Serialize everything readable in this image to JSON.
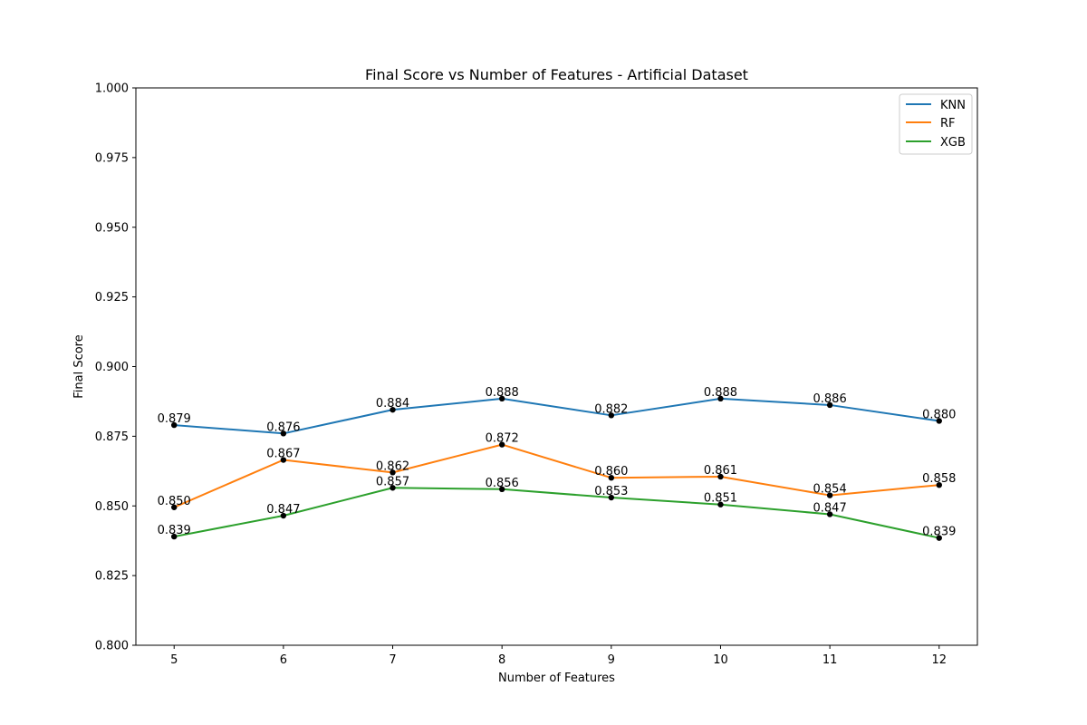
{
  "chart_data": {
    "type": "line",
    "title": "Final Score vs Number of Features - Artificial Dataset",
    "xlabel": "Number of Features",
    "ylabel": "Final Score",
    "x": [
      5,
      6,
      7,
      8,
      9,
      10,
      11,
      12
    ],
    "xlim": [
      4.65,
      12.35
    ],
    "ylim": [
      0.8,
      1.0
    ],
    "yticks": [
      "0.800",
      "0.825",
      "0.850",
      "0.875",
      "0.900",
      "0.925",
      "0.950",
      "0.975",
      "1.000"
    ],
    "xticks": [
      "5",
      "6",
      "7",
      "8",
      "9",
      "10",
      "11",
      "12"
    ],
    "grid": false,
    "legend_position": "top-right",
    "marker_color": "#000000",
    "series": [
      {
        "name": "KNN",
        "color": "#1f77b4",
        "values": [
          0.879,
          0.876,
          0.8845,
          0.8885,
          0.8825,
          0.8885,
          0.8862,
          0.8805
        ],
        "labels": [
          "0.879",
          "0.876",
          "0.884",
          "0.888",
          "0.882",
          "0.888",
          "0.886",
          "0.880"
        ]
      },
      {
        "name": "RF",
        "color": "#ff7f0e",
        "values": [
          0.8495,
          0.8665,
          0.862,
          0.872,
          0.8601,
          0.8605,
          0.8538,
          0.8575
        ],
        "labels": [
          "0.850",
          "0.867",
          "0.862",
          "0.872",
          "0.860",
          "0.861",
          "0.854",
          "0.858"
        ]
      },
      {
        "name": "XGB",
        "color": "#2ca02c",
        "values": [
          0.839,
          0.8465,
          0.8565,
          0.856,
          0.853,
          0.8505,
          0.847,
          0.8385
        ],
        "labels": [
          "0.839",
          "0.847",
          "0.857",
          "0.856",
          "0.853",
          "0.851",
          "0.847",
          "0.839"
        ]
      }
    ]
  }
}
